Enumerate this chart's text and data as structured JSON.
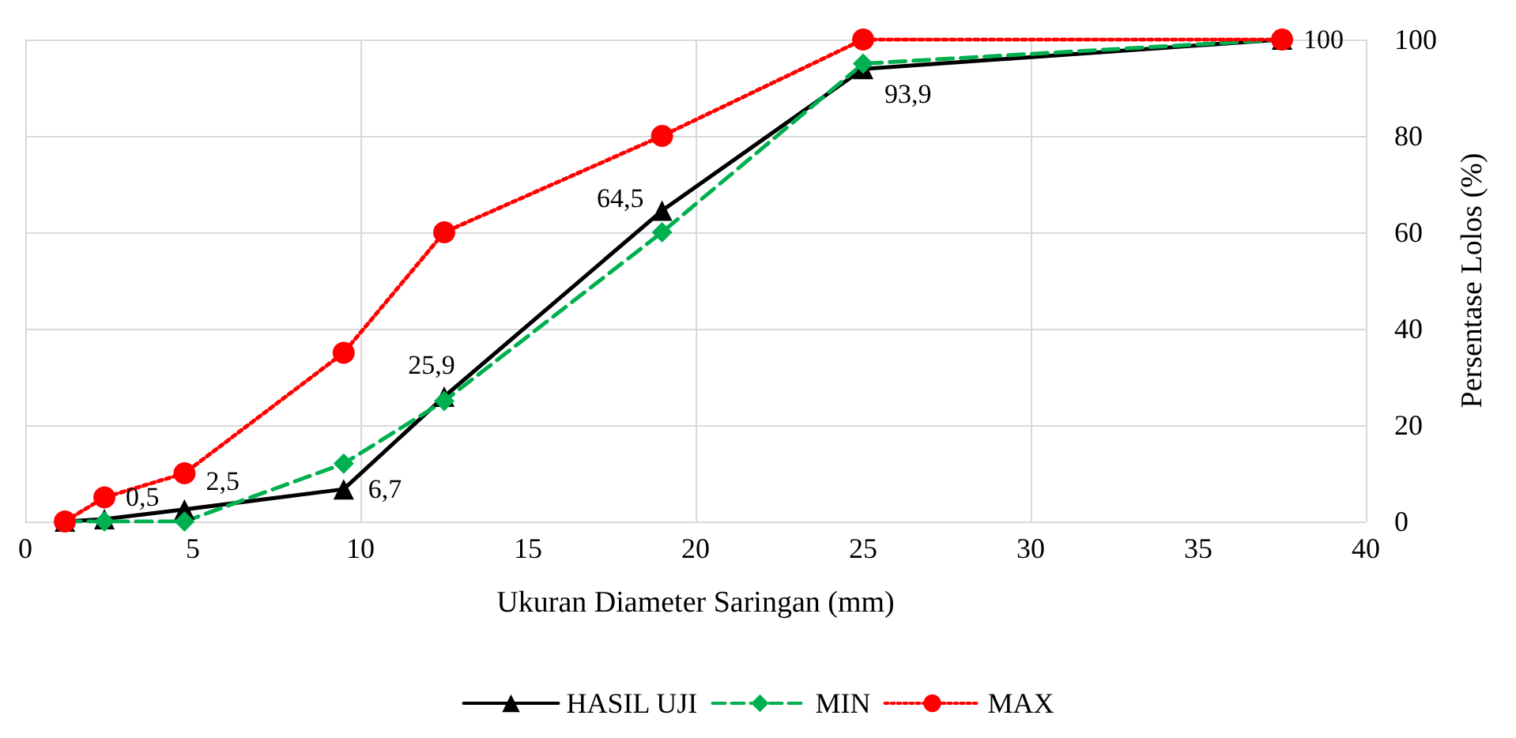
{
  "chart_data": {
    "type": "line",
    "xlabel": "Ukuran Diameter Saringan (mm)",
    "ylabel": "Persentase Lolos (%)",
    "x": [
      1.18,
      2.36,
      4.75,
      9.5,
      12.5,
      19,
      25,
      37.5
    ],
    "series": [
      {
        "name": "HASIL UJI",
        "color": "#000000",
        "marker": "triangle",
        "line_style": "solid",
        "values": [
          0,
          0.5,
          2.5,
          6.7,
          25.9,
          64.5,
          93.9,
          100
        ],
        "value_labels": [
          null,
          "0,5",
          "2,5",
          "6,7",
          "25,9",
          "64,5",
          "93,9",
          "100"
        ]
      },
      {
        "name": "MIN",
        "color": "#00b050",
        "marker": "diamond",
        "line_style": "dashed",
        "values": [
          0,
          0,
          0,
          12,
          25,
          60,
          95,
          100
        ]
      },
      {
        "name": "MAX",
        "color": "#ff0000",
        "marker": "circle",
        "line_style": "dotted",
        "values": [
          0,
          5,
          10,
          35,
          60,
          80,
          100,
          100
        ]
      }
    ],
    "xlim": [
      0,
      40
    ],
    "xticks": [
      0,
      5,
      10,
      15,
      20,
      25,
      30,
      35,
      40
    ],
    "ylim": [
      0,
      100
    ],
    "yticks": [
      0,
      20,
      40,
      60,
      80,
      100
    ],
    "grid": true,
    "legend": "bottom"
  }
}
